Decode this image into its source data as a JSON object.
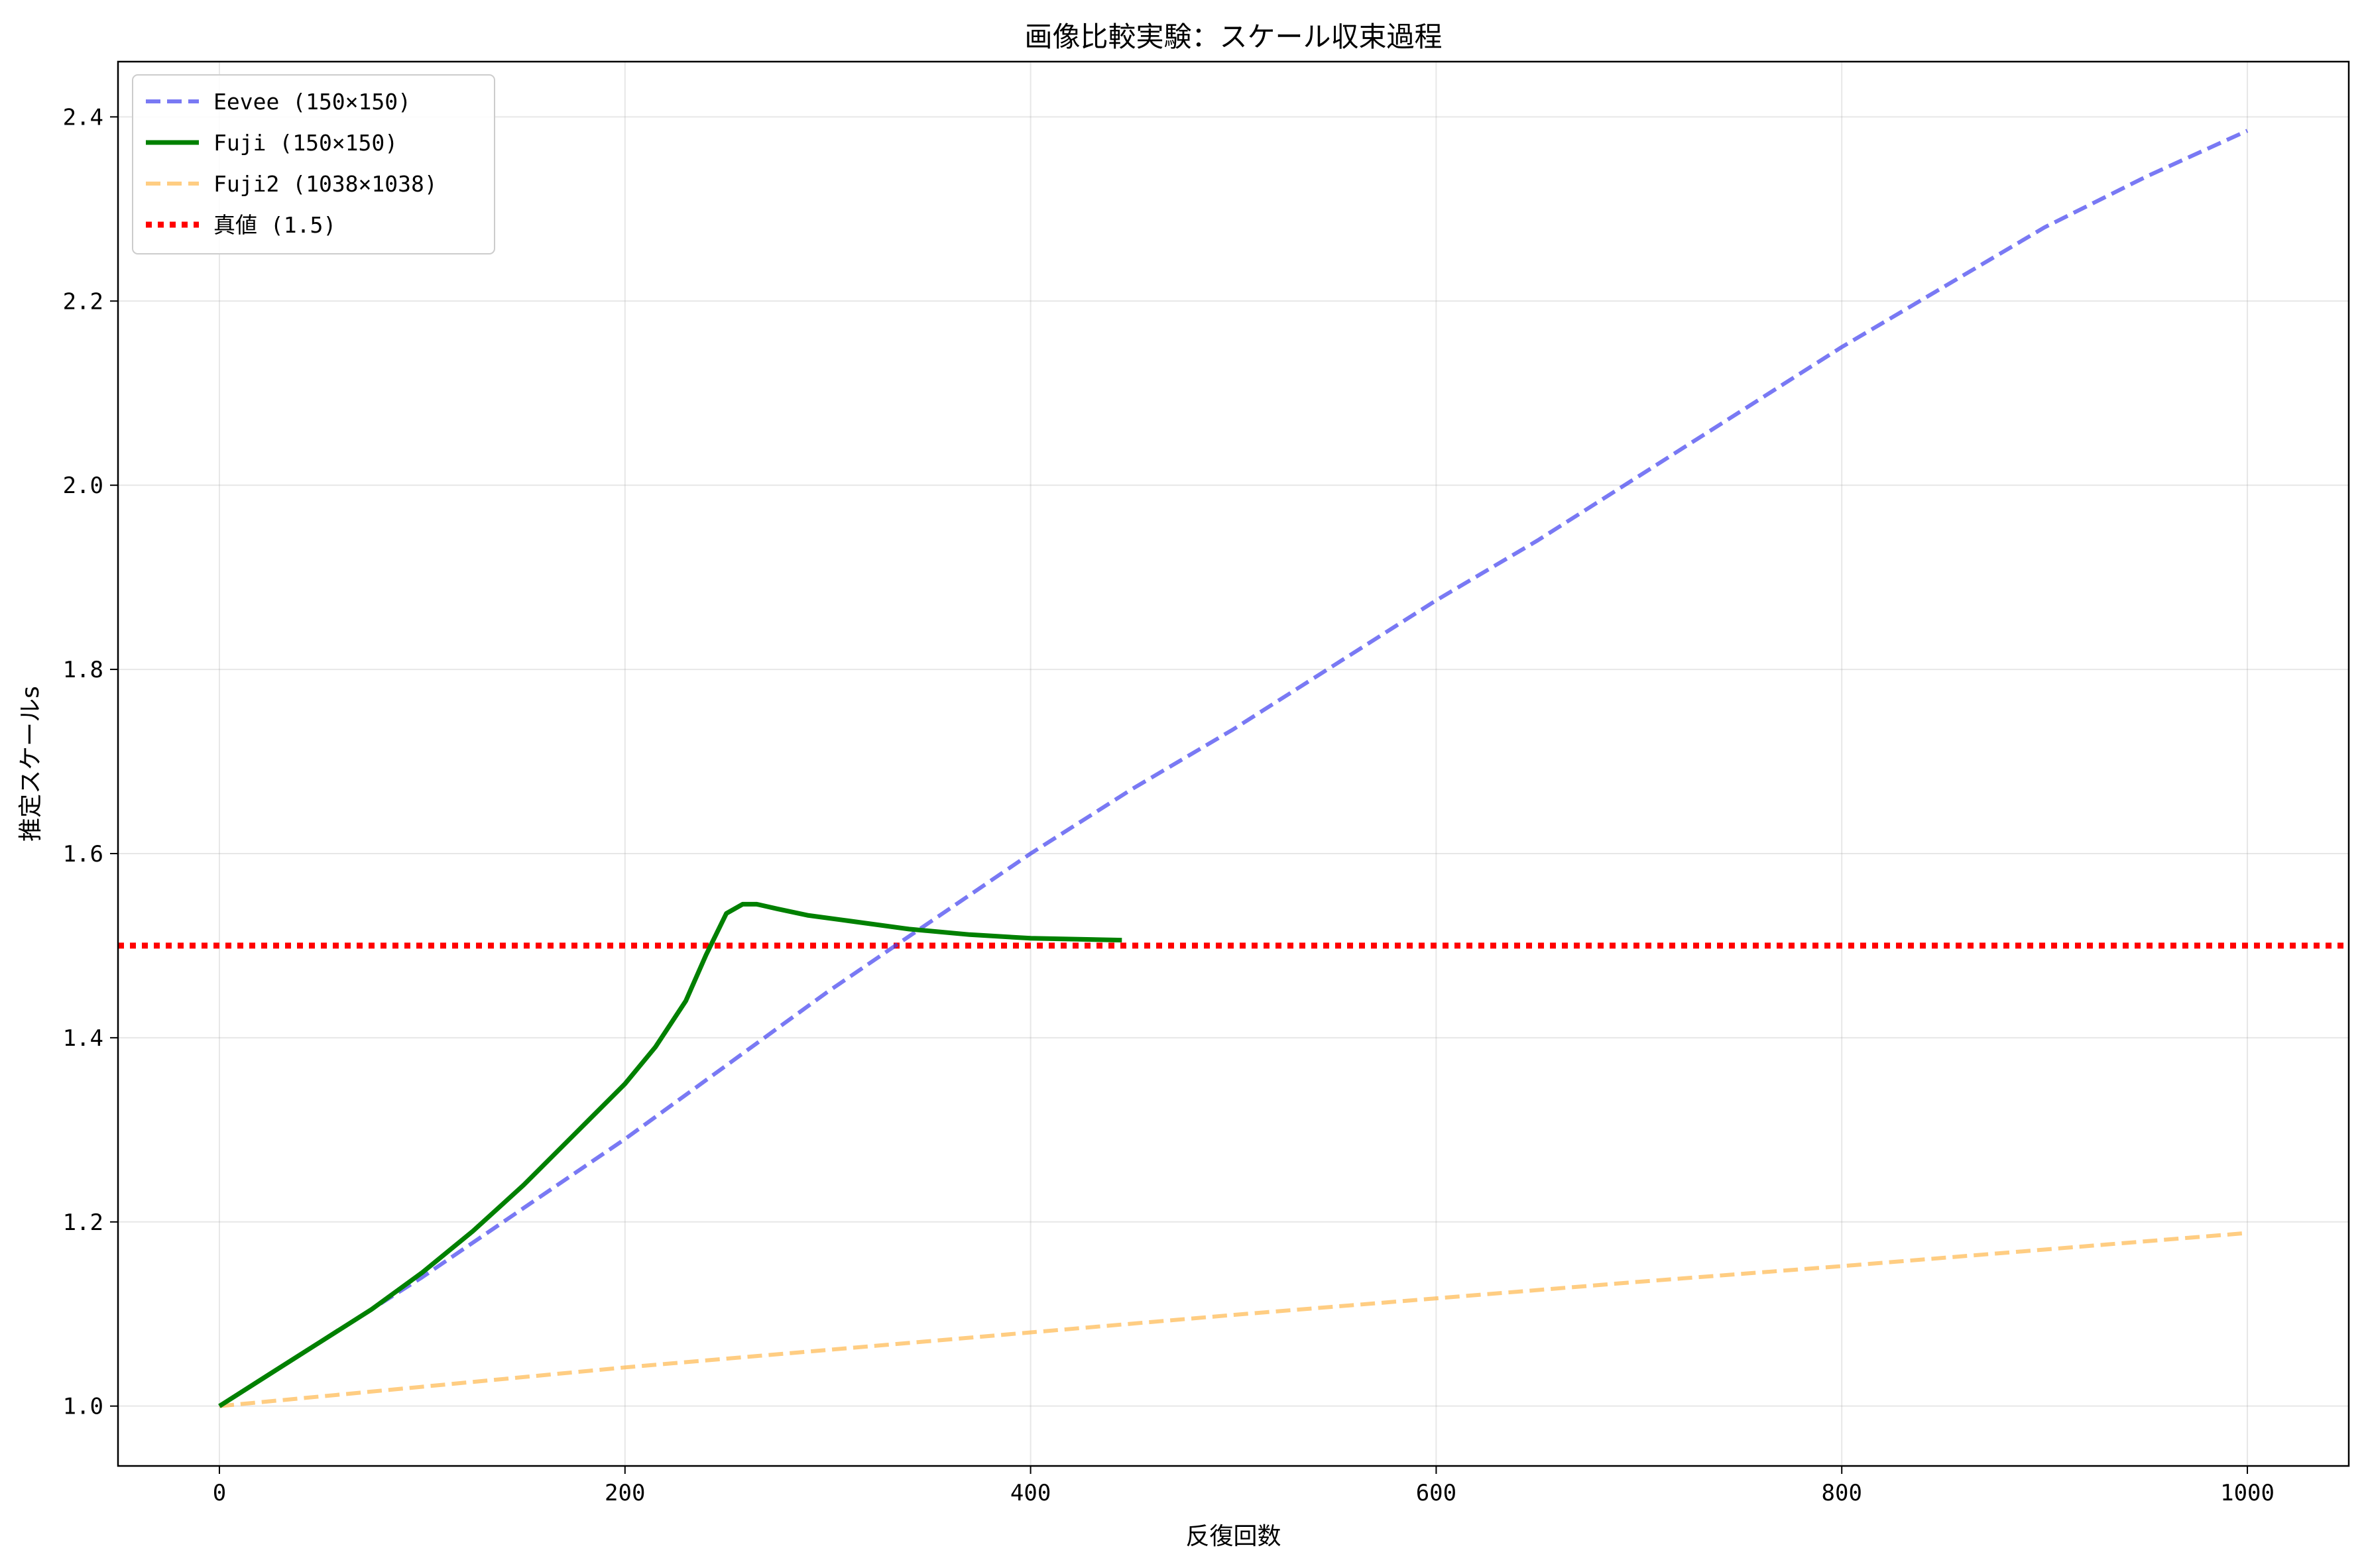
{
  "chart_data": {
    "type": "line",
    "title": "画像比較実験：スケール収束過程",
    "xlabel": "反復回数",
    "ylabel": "推定スケールs",
    "xlim": [
      -50,
      1050
    ],
    "ylim": [
      0.935,
      2.46
    ],
    "xticks": [
      0,
      200,
      400,
      600,
      800,
      1000
    ],
    "yticks": [
      1.0,
      1.2,
      1.4,
      1.6,
      1.8,
      2.0,
      2.2,
      2.4
    ],
    "xtick_labels": [
      "0",
      "200",
      "400",
      "600",
      "800",
      "1000"
    ],
    "ytick_labels": [
      "1.0",
      "1.2",
      "1.4",
      "1.6",
      "1.8",
      "2.0",
      "2.2",
      "2.4"
    ],
    "grid": true,
    "legend_position": "top-left",
    "series": [
      {
        "name": "Eevee (150×150)",
        "color": "#4040f0",
        "style": "dashed",
        "x": [
          0,
          50,
          100,
          150,
          200,
          250,
          300,
          350,
          400,
          450,
          500,
          550,
          600,
          650,
          700,
          750,
          800,
          850,
          900,
          950,
          1000
        ],
        "y": [
          1.0,
          1.07,
          1.14,
          1.215,
          1.29,
          1.37,
          1.45,
          1.525,
          1.6,
          1.67,
          1.735,
          1.805,
          1.875,
          1.94,
          2.01,
          2.08,
          2.15,
          2.215,
          2.28,
          2.335,
          2.385
        ]
      },
      {
        "name": "Fuji (150×150)",
        "color": "#008000",
        "style": "solid",
        "x": [
          0,
          25,
          50,
          75,
          100,
          125,
          150,
          175,
          200,
          215,
          230,
          240,
          250,
          258,
          265,
          275,
          290,
          310,
          340,
          370,
          400,
          445
        ],
        "y": [
          1.0,
          1.035,
          1.07,
          1.105,
          1.145,
          1.19,
          1.24,
          1.295,
          1.35,
          1.39,
          1.44,
          1.49,
          1.535,
          1.545,
          1.545,
          1.54,
          1.533,
          1.527,
          1.518,
          1.512,
          1.508,
          1.506
        ]
      },
      {
        "name": "Fuji2 (1038×1038)",
        "color": "#ffb84d",
        "style": "dashed",
        "x": [
          0,
          100,
          200,
          300,
          400,
          500,
          600,
          700,
          800,
          900,
          1000
        ],
        "y": [
          1.0,
          1.021,
          1.042,
          1.061,
          1.08,
          1.099,
          1.117,
          1.135,
          1.152,
          1.17,
          1.188
        ]
      },
      {
        "name": "真値 (1.5)",
        "color": "#ff0000",
        "style": "dotted",
        "x": [
          -50,
          1050
        ],
        "y": [
          1.5,
          1.5
        ]
      }
    ]
  }
}
